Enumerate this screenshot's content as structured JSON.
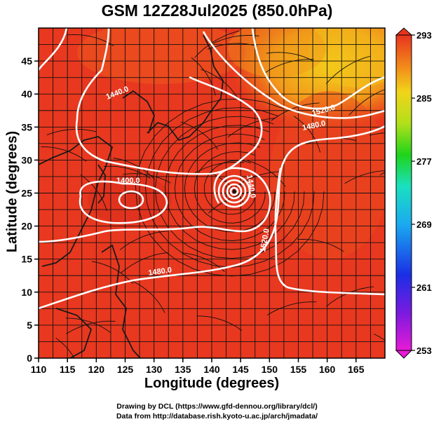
{
  "title": "GSM 12Z28Jul2025 (850.0hPa)",
  "xaxis": {
    "label": "Longitude (degrees)",
    "min": 110,
    "max": 170,
    "ticks": [
      "110",
      "115",
      "120",
      "125",
      "130",
      "135",
      "140",
      "145",
      "150",
      "155",
      "160",
      "165"
    ]
  },
  "yaxis": {
    "label": "Latitude  (degrees)",
    "min": 0,
    "max": 50,
    "ticks": [
      "0",
      "5",
      "10",
      "15",
      "20",
      "25",
      "30",
      "35",
      "40",
      "45"
    ]
  },
  "colorbar": {
    "min": 253,
    "max": 293,
    "ticks": [
      "253",
      "261",
      "269",
      "277",
      "285",
      "293"
    ]
  },
  "contour_labels": [
    "1440.0",
    "1400.0",
    "1440.0",
    "1480.0",
    "1520.0",
    "1480.0",
    "1520.0",
    "1520.0"
  ],
  "colors": {
    "warm": "#e8341f",
    "orange": "#f07a1a",
    "yellow": "#f2c21a",
    "contour": "#ffffff"
  },
  "credits": {
    "line1": "Drawing by DCL (https://www.gfd-dennou.org/library/dcl/)",
    "line2": "Data from http://database.rish.kyoto-u.ac.jp/arch/jmadata/"
  }
}
